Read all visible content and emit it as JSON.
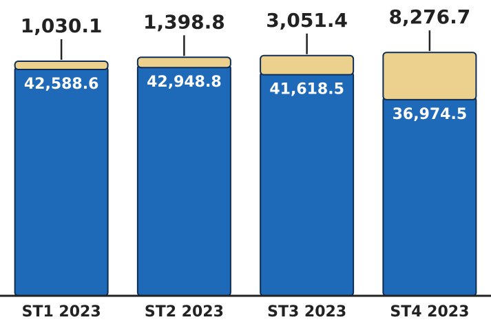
{
  "chart_data": {
    "type": "stacked-bar",
    "categories": [
      "ST1 2023",
      "ST2 2023",
      "ST3 2023",
      "ST4 2023"
    ],
    "series": [
      {
        "color": "#1f6ab8",
        "values": [
          42588.6,
          42948.8,
          41618.5,
          36974.5
        ],
        "value_labels": [
          "42,588.6",
          "42,948.8",
          "41,618.5",
          "36,974.5"
        ]
      },
      {
        "color": "#ecd08e",
        "values": [
          1030.1,
          1398.8,
          3051.4,
          8276.7
        ],
        "value_labels": [
          "1,030.1",
          "1,398.8",
          "3,051.4",
          "8,276.7"
        ]
      }
    ],
    "ylim": [
      0,
      55000
    ]
  }
}
